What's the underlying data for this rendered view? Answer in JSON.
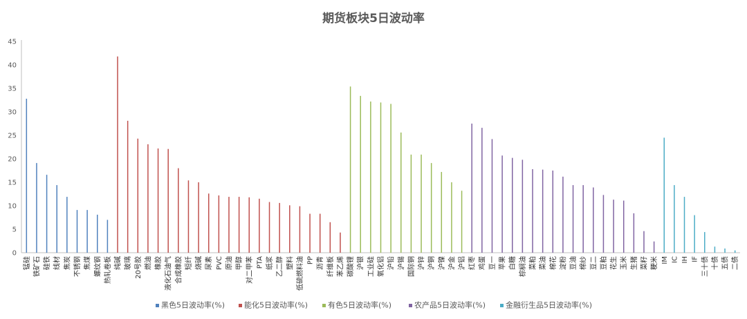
{
  "chart_data": {
    "type": "bar",
    "title": "期货板块5日波动率",
    "xlabel": "",
    "ylabel": "",
    "ylim": [
      0,
      45
    ],
    "yticks": [
      0,
      5,
      10,
      15,
      20,
      25,
      30,
      35,
      40,
      45
    ],
    "grid": false,
    "legend_position": "bottom",
    "series": [
      {
        "name": "黑色5日波动率(%)",
        "color": "#4f81bd",
        "categories": [
          "锰硅",
          "铁矿石",
          "硅铁",
          "线材",
          "焦炭",
          "不锈钢",
          "焦煤",
          "螺纹钢",
          "热轧卷板"
        ],
        "values": [
          32.8,
          19.1,
          16.6,
          14.4,
          11.9,
          9.1,
          9.1,
          8.1,
          7.0
        ]
      },
      {
        "name": "能化5日波动率(%)",
        "color": "#c0504d",
        "categories": [
          "纯碱",
          "玻璃",
          "20号胶",
          "燃油",
          "橡胶",
          "液化石油气",
          "合成橡胶",
          "短纤",
          "烧碱",
          "尿素",
          "PVC",
          "原油",
          "甲醇",
          "对二甲苯",
          "PTA",
          "纸浆",
          "乙二醇",
          "塑料",
          "低硫燃料油",
          "PP",
          "沥青",
          "纤维板",
          "苯乙烯"
        ],
        "values": [
          41.8,
          28.1,
          24.3,
          23.1,
          22.2,
          22.1,
          18.0,
          15.4,
          15.0,
          12.6,
          12.2,
          11.9,
          11.9,
          11.8,
          11.5,
          10.8,
          10.6,
          10.1,
          9.9,
          8.3,
          8.3,
          6.5,
          4.3
        ]
      },
      {
        "name": "有色5日波动率(%)",
        "color": "#9bbb59",
        "categories": [
          "碳酸锂",
          "沪银",
          "工业硅",
          "氧化铝",
          "沪铅",
          "沪锡",
          "国际铜",
          "沪锌",
          "沪铜",
          "沪镍",
          "沪金",
          "沪铝"
        ],
        "values": [
          35.4,
          33.4,
          32.2,
          32.0,
          31.7,
          25.6,
          20.9,
          20.9,
          19.1,
          17.2,
          15.0,
          13.2
        ]
      },
      {
        "name": "农产品5日波动率(%)",
        "color": "#8064a2",
        "categories": [
          "红枣",
          "鸡蛋",
          "豆一",
          "苹果",
          "白糖",
          "棕榈油",
          "菜粕",
          "菜油",
          "棉花",
          "淀粉",
          "豆油",
          "棉纱",
          "豆二",
          "豆粕",
          "花生",
          "玉米",
          "生猪",
          "菜籽",
          "粳米"
        ],
        "values": [
          27.5,
          26.6,
          24.2,
          20.7,
          20.2,
          19.8,
          17.8,
          17.7,
          17.5,
          16.2,
          14.4,
          14.4,
          13.9,
          12.3,
          11.3,
          11.1,
          8.4,
          4.6,
          2.4
        ]
      },
      {
        "name": "金融衍生品5日波动率(%)",
        "color": "#4bacc6",
        "categories": [
          "IM",
          "IC",
          "IH",
          "IF",
          "三十债",
          "十债",
          "五债",
          "二债"
        ],
        "values": [
          24.5,
          14.4,
          11.9,
          8.0,
          4.4,
          1.3,
          0.9,
          0.5
        ]
      }
    ]
  }
}
